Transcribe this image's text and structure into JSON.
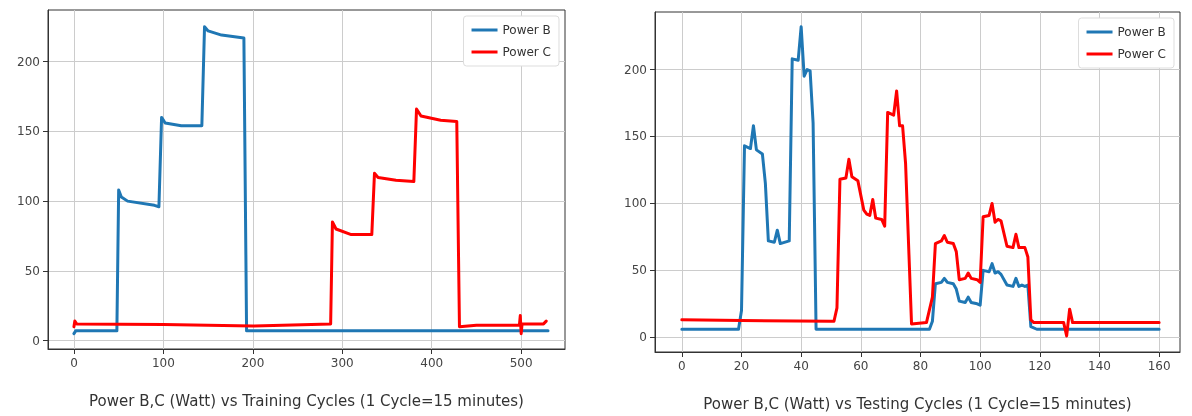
{
  "chart_data": [
    {
      "type": "line",
      "xlabel": "Power B,C (Watt) vs Training Cycles (1 Cycle=15 minutes)",
      "xlim": [
        -29,
        549
      ],
      "ylim": [
        -6,
        237
      ],
      "xticks": [
        0,
        100,
        200,
        300,
        400,
        500
      ],
      "yticks": [
        0,
        50,
        100,
        150,
        200
      ],
      "grid": true,
      "legend": "top right",
      "marker": "none",
      "line_style": "solid",
      "series": [
        {
          "name": "Power B",
          "color": "#1f77b4",
          "x": [
            0,
            2,
            48,
            50,
            53,
            60,
            90,
            95,
            98,
            102,
            120,
            143,
            146,
            150,
            165,
            190,
            193,
            250,
            400,
            530
          ],
          "values": [
            5,
            7,
            7,
            108,
            103,
            100,
            97,
            96,
            160,
            156,
            154,
            154,
            225,
            222,
            219,
            217,
            7,
            7,
            7,
            7
          ]
        },
        {
          "name": "Power C",
          "color": "#ff0000",
          "x": [
            0,
            1,
            3,
            100,
            200,
            287,
            289,
            293,
            310,
            333,
            336,
            340,
            360,
            380,
            383,
            388,
            410,
            428,
            431,
            450,
            498,
            499,
            500,
            501,
            525,
            528
          ],
          "values": [
            10,
            14,
            12,
            11.5,
            10.5,
            12,
            85,
            80,
            76,
            76,
            120,
            117,
            115,
            114,
            166,
            161,
            158,
            157,
            10,
            11,
            11,
            18,
            5,
            12,
            12,
            14
          ]
        }
      ]
    },
    {
      "type": "line",
      "xlabel": "Power B,C (Watt) vs Testing Cycles (1 Cycle=15 minutes)",
      "xlim": [
        -9,
        167
      ],
      "ylim": [
        -11,
        243
      ],
      "xticks": [
        0,
        20,
        40,
        60,
        80,
        100,
        120,
        140,
        160
      ],
      "yticks": [
        0,
        50,
        100,
        150,
        200
      ],
      "grid": true,
      "legend": "top right",
      "marker": "none",
      "line_style": "solid",
      "series": [
        {
          "name": "Power B",
          "color": "#1f77b4",
          "x": [
            0,
            19,
            20,
            21,
            23,
            24,
            25,
            27,
            28,
            29,
            31,
            32,
            33,
            36,
            37,
            39,
            40,
            41,
            42,
            43,
            44,
            45,
            83,
            84,
            85,
            87,
            88,
            89,
            91,
            92,
            93,
            95,
            96,
            97,
            99,
            100,
            101,
            103,
            104,
            105,
            106,
            107,
            109,
            111,
            112,
            113,
            114,
            115,
            116,
            117,
            119,
            160
          ],
          "values": [
            6,
            6,
            20,
            143,
            141,
            158,
            140,
            137,
            115,
            72,
            71,
            80,
            70,
            72,
            208,
            207,
            232,
            195,
            200,
            199,
            160,
            6,
            6,
            12,
            40,
            41,
            44,
            41,
            40,
            36,
            27,
            26,
            30,
            26,
            25,
            24,
            50,
            49,
            55,
            48,
            49,
            47,
            39,
            38,
            44,
            38,
            39,
            38,
            39,
            8,
            6,
            6
          ]
        },
        {
          "name": "Power C",
          "color": "#ff0000",
          "x": [
            0,
            20,
            50,
            51,
            52,
            53,
            55,
            56,
            57,
            59,
            61,
            62,
            63,
            64,
            65,
            67,
            68,
            69,
            71,
            72,
            73,
            74,
            75,
            77,
            82,
            84,
            85,
            87,
            88,
            89,
            91,
            92,
            93,
            95,
            96,
            97,
            99,
            100,
            101,
            103,
            104,
            105,
            106,
            107,
            109,
            111,
            112,
            113,
            115,
            116,
            117,
            118,
            128,
            129,
            130,
            131,
            160
          ],
          "values": [
            13,
            12.5,
            12,
            12,
            22,
            118,
            119,
            133,
            120,
            117,
            95,
            92,
            91,
            103,
            89,
            88,
            83,
            168,
            166,
            184,
            158,
            158,
            130,
            10,
            11,
            30,
            70,
            72,
            76,
            71,
            70,
            64,
            43,
            44,
            48,
            44,
            43,
            41,
            90,
            91,
            100,
            86,
            88,
            87,
            68,
            67,
            77,
            67,
            67,
            60,
            13,
            11,
            11,
            1,
            21,
            11,
            11
          ]
        }
      ]
    }
  ]
}
